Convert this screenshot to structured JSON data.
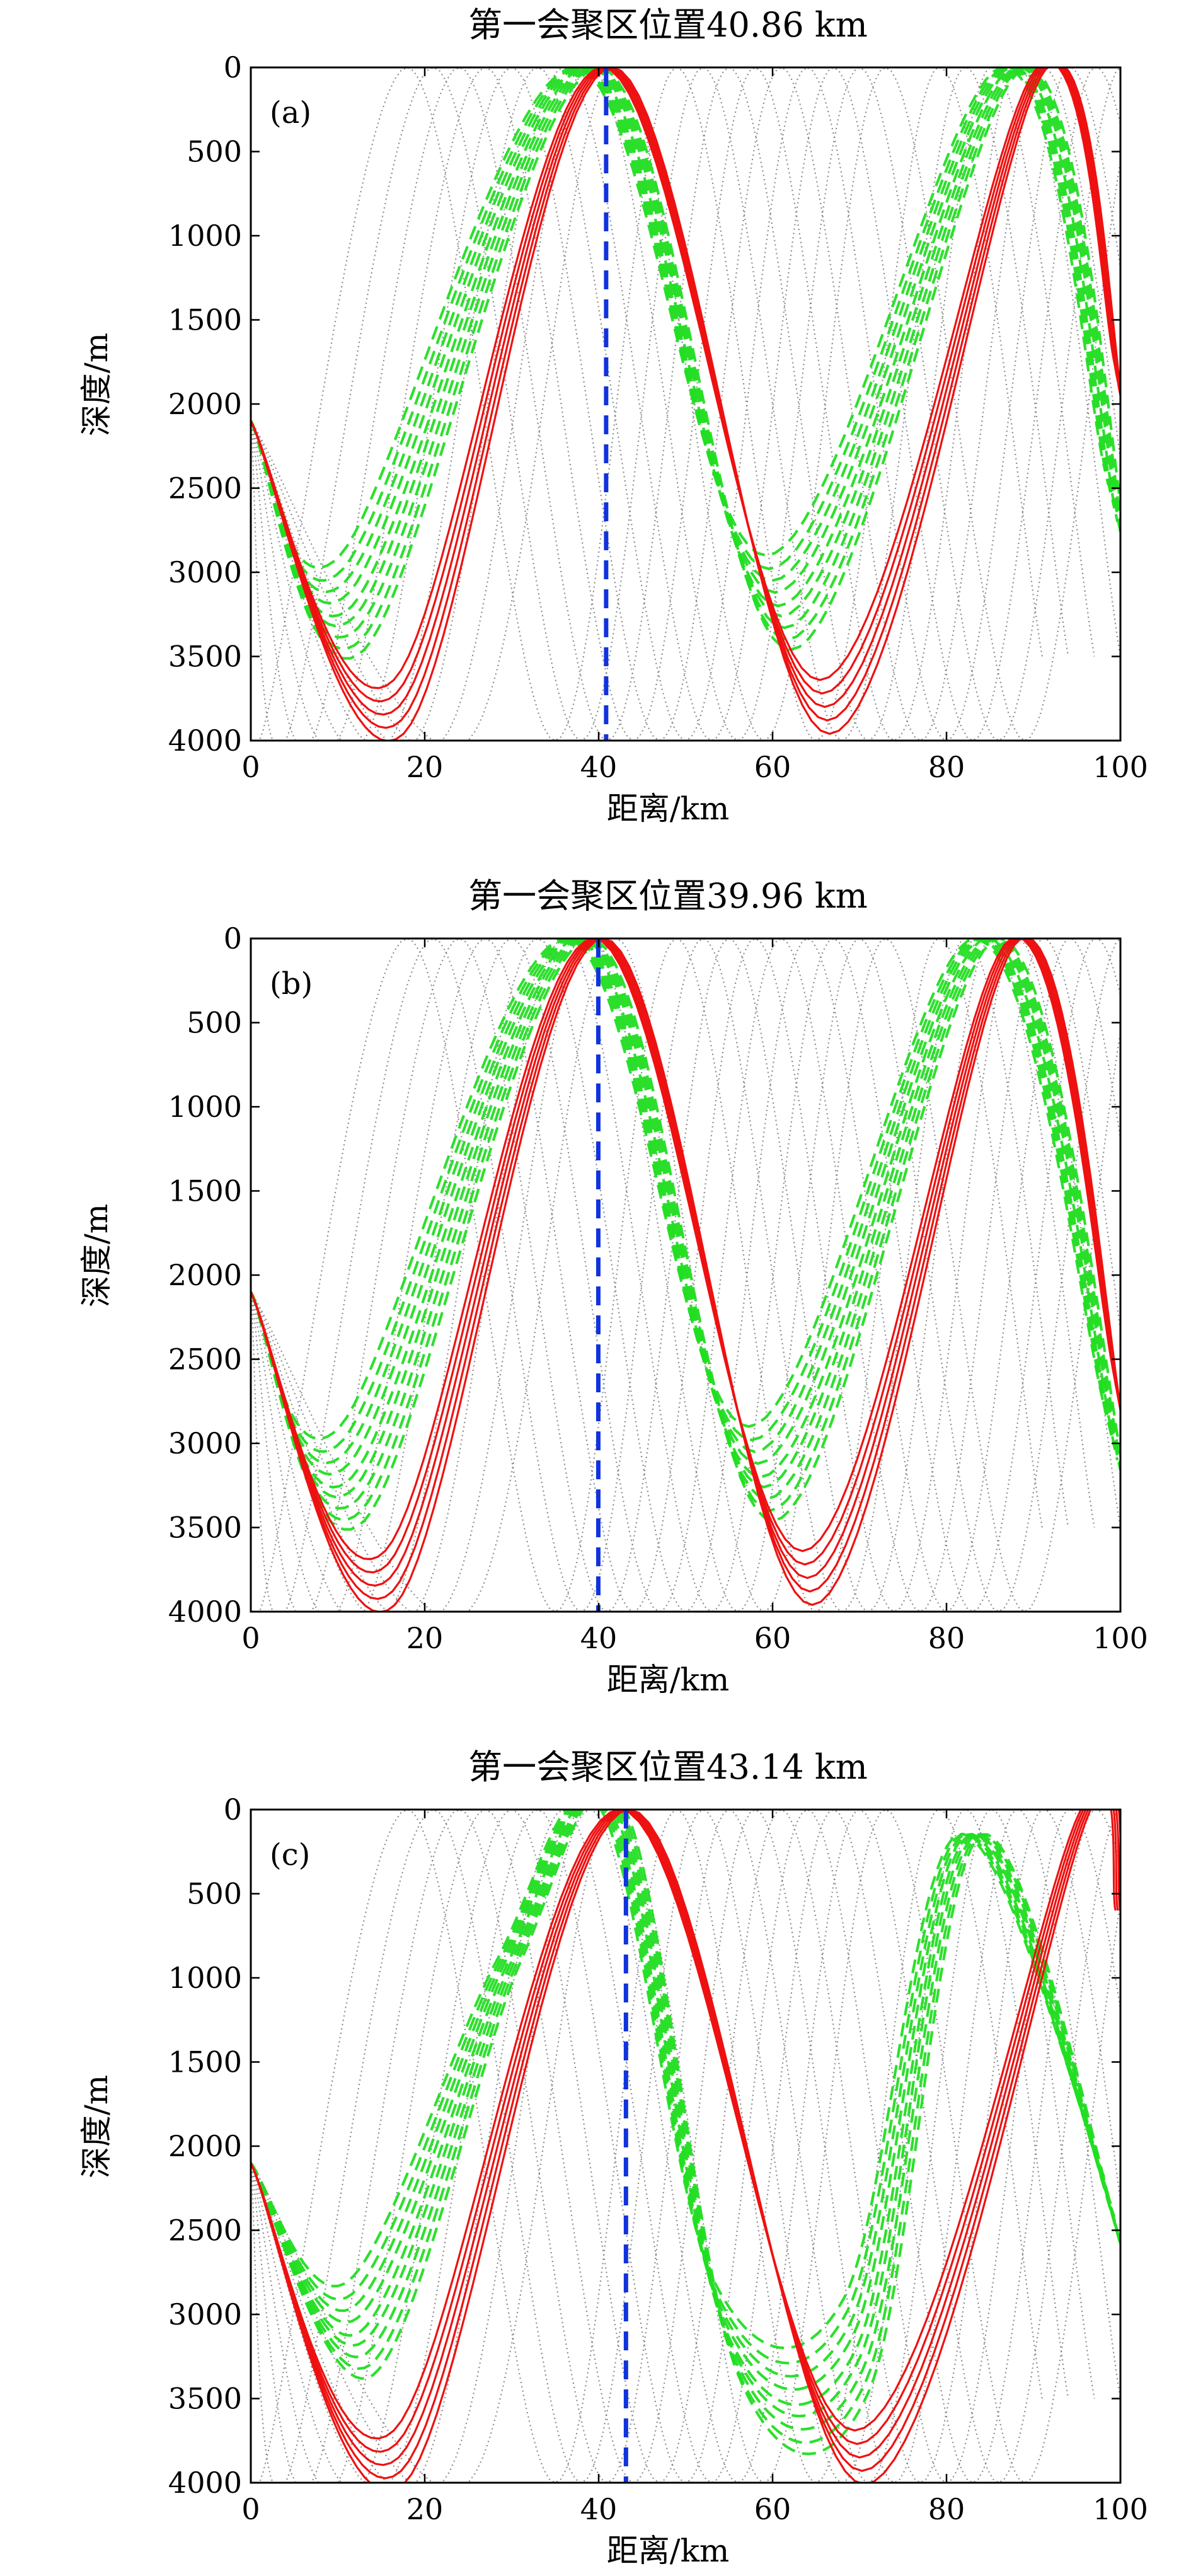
{
  "figure": {
    "panels": [
      {
        "id": "a",
        "letter": "(a)",
        "title": "第一会聚区位置40.86 km",
        "xlabel": "距离/km",
        "ylabel": "深度/m"
      },
      {
        "id": "b",
        "letter": "(b)",
        "title": "第一会聚区位置39.96 km",
        "xlabel": "距离/km",
        "ylabel": "深度/m"
      },
      {
        "id": "c",
        "letter": "(c)",
        "title": "第一会聚区位置43.14 km",
        "xlabel": "距离/km",
        "ylabel": "深度/m"
      }
    ]
  },
  "colors": {
    "solid_rays": "#ee1111",
    "dashed_rays": "#22dd22",
    "dotted_rays": "#777777",
    "cz_marker": "#1133dd",
    "axes": "#000000"
  },
  "chart_data": [
    {
      "type": "line",
      "panel": "(a)",
      "title": "第一会聚区位置40.86 km",
      "xlabel": "距离/km",
      "ylabel": "深度/m",
      "xlim": [
        0,
        100
      ],
      "ylim": [
        4000,
        0
      ],
      "y_inverted": true,
      "xticks": [
        0,
        20,
        40,
        60,
        80,
        100
      ],
      "yticks": [
        0,
        500,
        1000,
        1500,
        2000,
        2500,
        3000,
        3500,
        4000
      ],
      "grid": false,
      "convergence_zone_km": 40.86,
      "series": [
        {
          "style": "solid",
          "color": "red",
          "points": [
            [
              0,
              2100
            ],
            [
              17,
              3800
            ],
            [
              41,
              0
            ],
            [
              66,
              3800
            ],
            [
              91,
              0
            ],
            [
              100,
              1950
            ]
          ]
        },
        {
          "style": "dashed",
          "color": "green",
          "points": [
            [
              0,
              2100
            ],
            [
              12,
              3200
            ],
            [
              39,
              0
            ],
            [
              61,
              3200
            ],
            [
              88,
              0
            ],
            [
              100,
              2700
            ]
          ]
        },
        {
          "style": "dotted",
          "color": "gray",
          "points": [
            [
              0,
              2100
            ],
            [
              10,
              4000
            ],
            [
              27,
              0
            ],
            [
              44,
              4000
            ],
            [
              58,
              0
            ],
            [
              74,
              4000
            ],
            [
              88,
              0
            ],
            [
              100,
              3500
            ]
          ]
        }
      ]
    },
    {
      "type": "line",
      "panel": "(b)",
      "title": "第一会聚区位置39.96 km",
      "xlabel": "距离/km",
      "ylabel": "深度/m",
      "xlim": [
        0,
        100
      ],
      "ylim": [
        4000,
        0
      ],
      "y_inverted": true,
      "xticks": [
        0,
        20,
        40,
        60,
        80,
        100
      ],
      "yticks": [
        0,
        500,
        1000,
        1500,
        2000,
        2500,
        3000,
        3500,
        4000
      ],
      "grid": false,
      "convergence_zone_km": 39.96,
      "series": [
        {
          "style": "solid",
          "color": "red",
          "points": [
            [
              0,
              2100
            ],
            [
              16,
              3800
            ],
            [
              40,
              0
            ],
            [
              64,
              3800
            ],
            [
              88,
              0
            ],
            [
              100,
              2800
            ]
          ]
        },
        {
          "style": "dashed",
          "color": "green",
          "points": [
            [
              0,
              2100
            ],
            [
              12,
              3200
            ],
            [
              38,
              0
            ],
            [
              59,
              3200
            ],
            [
              85,
              0
            ],
            [
              100,
              3100
            ]
          ]
        },
        {
          "style": "dotted",
          "color": "gray",
          "points": [
            [
              0,
              2100
            ],
            [
              10,
              4000
            ],
            [
              27,
              0
            ],
            [
              44,
              4000
            ],
            [
              58,
              0
            ],
            [
              74,
              4000
            ],
            [
              88,
              0
            ],
            [
              100,
              3500
            ]
          ]
        }
      ]
    },
    {
      "type": "line",
      "panel": "(c)",
      "title": "第一会聚区位置43.14 km",
      "xlabel": "距离/km",
      "ylabel": "深度/m",
      "xlim": [
        0,
        100
      ],
      "ylim": [
        4000,
        0
      ],
      "y_inverted": true,
      "xticks": [
        0,
        20,
        40,
        60,
        80,
        100
      ],
      "yticks": [
        0,
        500,
        1000,
        1500,
        2000,
        2500,
        3000,
        3500,
        4000
      ],
      "grid": false,
      "convergence_zone_km": 43.14,
      "series": [
        {
          "style": "solid",
          "color": "red",
          "points": [
            [
              0,
              2100
            ],
            [
              17,
              3850
            ],
            [
              43,
              0
            ],
            [
              70,
              3850
            ],
            [
              96,
              0
            ],
            [
              100,
              600
            ]
          ]
        },
        {
          "style": "dashed",
          "color": "green",
          "points": [
            [
              0,
              2100
            ],
            [
              13,
              3100
            ],
            [
              30,
              900
            ],
            [
              42,
              0
            ],
            [
              55,
              3100
            ],
            [
              70,
              3200
            ],
            [
              83,
              150
            ],
            [
              100,
              2500
            ]
          ]
        },
        {
          "style": "dotted",
          "color": "gray",
          "points": [
            [
              0,
              2100
            ],
            [
              10,
              4000
            ],
            [
              27,
              0
            ],
            [
              44,
              4000
            ],
            [
              58,
              0
            ],
            [
              74,
              4000
            ],
            [
              88,
              0
            ],
            [
              100,
              3500
            ]
          ]
        }
      ]
    }
  ]
}
